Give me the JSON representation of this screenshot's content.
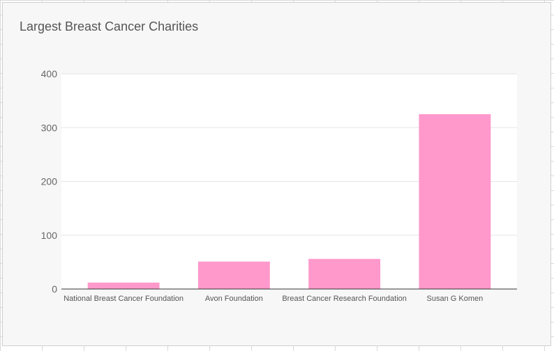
{
  "chart_data": {
    "type": "bar",
    "title": "Largest Breast Cancer Charities",
    "xlabel": "",
    "ylabel": "",
    "categories": [
      "National Breast Cancer Foundation",
      "Avon Foundation",
      "Breast Cancer Research Foundation",
      "Susan G Komen"
    ],
    "values": [
      12,
      51,
      56,
      325
    ],
    "ylim": [
      0,
      400
    ],
    "yticks": [
      0,
      100,
      200,
      300,
      400
    ],
    "grid": true,
    "legend": "none",
    "colors": {
      "bar": "#ff99cc",
      "plot_background": "#ffffff",
      "gridline": "#e5e5e5",
      "axis": "#333333"
    }
  }
}
